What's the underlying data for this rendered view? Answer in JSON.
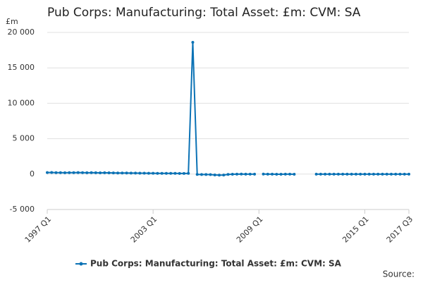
{
  "chart_data": {
    "type": "line",
    "title": "Pub Corps: Manufacturing: Total Asset: £m: CVM: SA",
    "y_label": "£m",
    "source": "Source:",
    "categories": [
      "1997 Q1",
      null,
      null,
      null,
      null,
      null,
      null,
      null,
      null,
      null,
      null,
      null,
      null,
      null,
      null,
      null,
      null,
      null,
      null,
      null,
      null,
      null,
      null,
      null,
      "2003 Q1",
      null,
      null,
      null,
      null,
      null,
      null,
      null,
      null,
      null,
      null,
      null,
      null,
      null,
      null,
      null,
      null,
      null,
      null,
      null,
      null,
      null,
      null,
      null,
      "2009 Q1",
      null,
      null,
      null,
      null,
      null,
      null,
      null,
      null,
      null,
      null,
      null,
      null,
      null,
      null,
      null,
      null,
      null,
      null,
      null,
      null,
      null,
      null,
      null,
      "2015 Q1",
      null,
      null,
      null,
      null,
      null,
      null,
      null,
      null,
      null,
      "2017 Q3"
    ],
    "series": [
      {
        "name": "Pub Corps: Manufacturing: Total Asset: £m: CVM: SA",
        "color": "#0b72b5",
        "values": [
          220,
          230,
          210,
          200,
          190,
          200,
          210,
          220,
          200,
          190,
          200,
          190,
          180,
          190,
          180,
          170,
          160,
          150,
          150,
          140,
          140,
          130,
          130,
          120,
          120,
          110,
          110,
          100,
          100,
          100,
          90,
          90,
          100,
          18600,
          -50,
          -60,
          -60,
          -70,
          -120,
          -150,
          -130,
          -40,
          -20,
          -10,
          0,
          -10,
          -10,
          -10,
          null,
          0,
          -10,
          -10,
          -20,
          -20,
          -10,
          -10,
          -20,
          null,
          null,
          null,
          null,
          -10,
          -10,
          -10,
          -10,
          -10,
          -10,
          -10,
          -10,
          -10,
          -10,
          -10,
          -10,
          -10,
          -10,
          -10,
          -10,
          -10,
          -10,
          -10,
          -10,
          -10,
          -10
        ]
      }
    ],
    "ylim": [
      -5000,
      20000
    ],
    "yticks": [
      {
        "value": -5000,
        "label": "-5 000"
      },
      0,
      {
        "value": 5000,
        "label": "5 000"
      },
      {
        "value": 10000,
        "label": "10 000"
      },
      {
        "value": 15000,
        "label": "15 000"
      },
      {
        "value": 20000,
        "label": "20 000"
      }
    ],
    "grid": true
  }
}
